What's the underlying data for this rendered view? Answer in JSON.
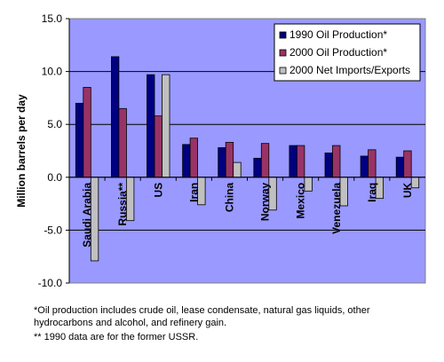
{
  "chart_data": {
    "type": "bar",
    "ylabel": "Million barrels per day",
    "ylim": [
      -10.0,
      15.0
    ],
    "yticks": [
      -10.0,
      -5.0,
      0.0,
      5.0,
      10.0,
      15.0
    ],
    "ytick_labels": [
      "-10.0",
      "-5.0",
      "0.0",
      "5.0",
      "10.0",
      "15.0"
    ],
    "grid": "horizontal",
    "legend_position": "top-right",
    "plot_background": "#9999ff",
    "categories": [
      "Saudi Arabia",
      "Russia**",
      "US",
      "Iran",
      "China",
      "Norway",
      "Mexico",
      "Venezuela",
      "Iraq",
      "UK"
    ],
    "series": [
      {
        "name": "1990 Oil Production*",
        "color": "#000080",
        "values": [
          7.0,
          11.4,
          9.7,
          3.1,
          2.8,
          1.8,
          3.0,
          2.3,
          2.0,
          1.9
        ]
      },
      {
        "name": "2000 Oil Production*",
        "color": "#993366",
        "values": [
          8.5,
          6.5,
          5.8,
          3.7,
          3.3,
          3.2,
          3.0,
          3.0,
          2.6,
          2.5
        ]
      },
      {
        "name": "2000 Net Imports/Exports",
        "color": "#c0c0c0",
        "values": [
          -7.9,
          -4.1,
          9.7,
          -2.6,
          1.4,
          -3.1,
          -1.3,
          -2.7,
          -2.0,
          -1.0
        ]
      }
    ]
  },
  "footnotes": {
    "note1_line1": "*Oil production includes crude oil, lease condensate, natural gas liquids, other",
    "note1_line2": "hydrocarbons and alcohol, and refinery gain.",
    "note2": "** 1990 data are for the former USSR."
  }
}
